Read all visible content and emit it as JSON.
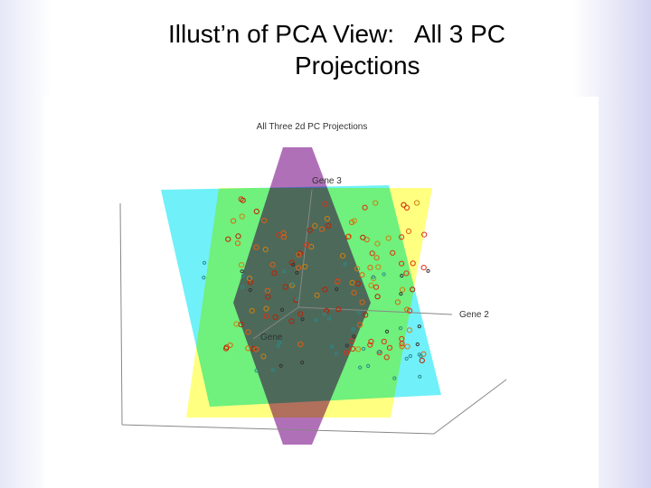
{
  "slide": {
    "title_line1": "Illust’n of PCA View:   All 3 PC",
    "title_line2": "Projections",
    "figure": {
      "title": "All Three 2d PC Projections",
      "axis_labels": [
        "Gene 3",
        "Gene 2",
        "Gene"
      ]
    }
  }
}
